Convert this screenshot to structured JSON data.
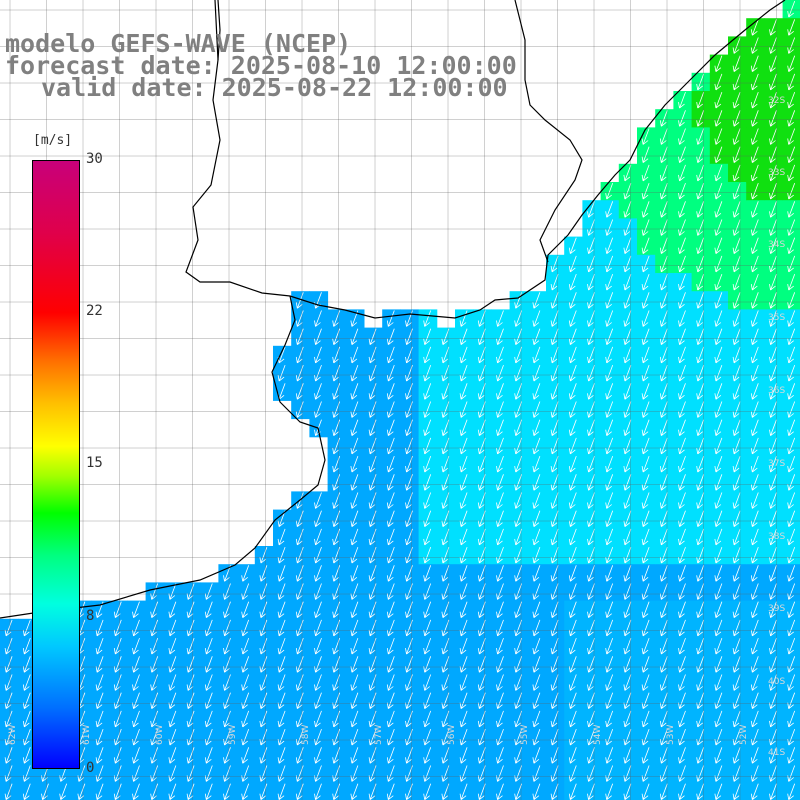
{
  "title": {
    "model": "modelo GEFS-WAVE (NCEP)",
    "forecast": "forecast date: 2025-08-10 12:00:00",
    "valid": "valid date: 2025-08-22 12:00:00"
  },
  "colorbar": {
    "unit": "[m/s]",
    "ticks": [
      "30",
      "22",
      "15",
      "8",
      "0"
    ],
    "range": [
      0,
      30
    ]
  },
  "lat_labels": [
    "32S",
    "33S",
    "34S",
    "35S",
    "36S",
    "37S",
    "38S",
    "39S",
    "40S",
    "41S"
  ],
  "lon_labels": [
    "62W",
    "61W",
    "60W",
    "59W",
    "58W",
    "57W",
    "56W",
    "55W",
    "54W",
    "53W",
    "52W"
  ],
  "field": {
    "variable": "wind speed",
    "arrow_direction": "toward SSW",
    "colors": {
      "low": "#00a8ff",
      "mid": "#00e0ff",
      "high": "#00ff80",
      "peak": "#10e010",
      "coast_dark": "#0050ff",
      "arrow": "#ffffff",
      "grid": "#606060",
      "coastline": "#000000"
    }
  }
}
